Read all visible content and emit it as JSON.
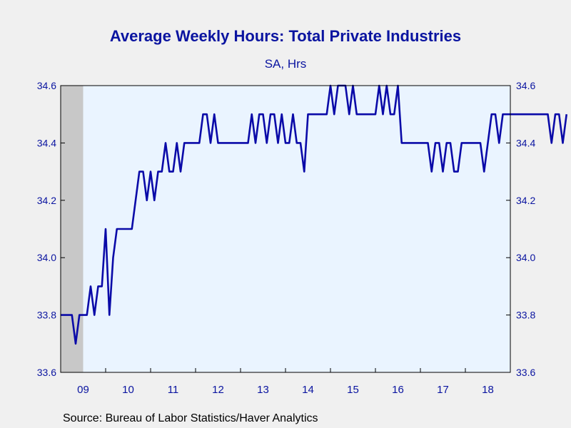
{
  "chart_data": {
    "type": "line",
    "title": "Average Weekly Hours: Total Private Industries",
    "subtitle": "SA, Hrs",
    "source": "Source:  Bureau of Labor Statistics/Haver Analytics",
    "ylim": [
      33.6,
      34.6
    ],
    "y_ticks": [
      "33.6",
      "33.8",
      "34.0",
      "34.2",
      "34.4",
      "34.6"
    ],
    "x_range": [
      2009.0,
      2019.0
    ],
    "x_ticks": [
      {
        "label": "09",
        "year": 2009
      },
      {
        "label": "10",
        "year": 2010
      },
      {
        "label": "11",
        "year": 2011
      },
      {
        "label": "12",
        "year": 2012
      },
      {
        "label": "13",
        "year": 2013
      },
      {
        "label": "14",
        "year": 2014
      },
      {
        "label": "15",
        "year": 2015
      },
      {
        "label": "16",
        "year": 2016
      },
      {
        "label": "17",
        "year": 2017
      },
      {
        "label": "18",
        "year": 2018
      }
    ],
    "recession_shading": [
      2009.0,
      2009.5
    ],
    "colors": {
      "line": "#0a0aa8",
      "plot_background": "#eaf4ff",
      "recession": "#c8c8c8",
      "text": "#0a14a0"
    },
    "series": [
      {
        "start": "2009-01",
        "frequency": "monthly",
        "values": [
          33.8,
          33.8,
          33.8,
          33.8,
          33.7,
          33.8,
          33.8,
          33.8,
          33.9,
          33.8,
          33.9,
          33.9,
          34.1,
          33.8,
          34.0,
          34.1,
          34.1,
          34.1,
          34.1,
          34.1,
          34.2,
          34.3,
          34.3,
          34.2,
          34.3,
          34.2,
          34.3,
          34.3,
          34.4,
          34.3,
          34.3,
          34.4,
          34.3,
          34.4,
          34.4,
          34.4,
          34.4,
          34.4,
          34.5,
          34.5,
          34.4,
          34.5,
          34.4,
          34.4,
          34.4,
          34.4,
          34.4,
          34.4,
          34.4,
          34.4,
          34.4,
          34.5,
          34.4,
          34.5,
          34.5,
          34.4,
          34.5,
          34.5,
          34.4,
          34.5,
          34.4,
          34.4,
          34.5,
          34.4,
          34.4,
          34.3,
          34.5,
          34.5,
          34.5,
          34.5,
          34.5,
          34.5,
          34.6,
          34.5,
          34.6,
          34.6,
          34.6,
          34.5,
          34.6,
          34.5,
          34.5,
          34.5,
          34.5,
          34.5,
          34.5,
          34.6,
          34.5,
          34.6,
          34.5,
          34.5,
          34.6,
          34.4,
          34.4,
          34.4,
          34.4,
          34.4,
          34.4,
          34.4,
          34.4,
          34.3,
          34.4,
          34.4,
          34.3,
          34.4,
          34.4,
          34.3,
          34.3,
          34.4,
          34.4,
          34.4,
          34.4,
          34.4,
          34.4,
          34.3,
          34.4,
          34.5,
          34.5,
          34.4,
          34.5,
          34.5,
          34.5,
          34.5,
          34.5,
          34.5,
          34.5,
          34.5,
          34.5,
          34.5,
          34.5,
          34.5,
          34.5,
          34.4,
          34.5,
          34.5,
          34.4,
          34.5
        ]
      }
    ]
  }
}
